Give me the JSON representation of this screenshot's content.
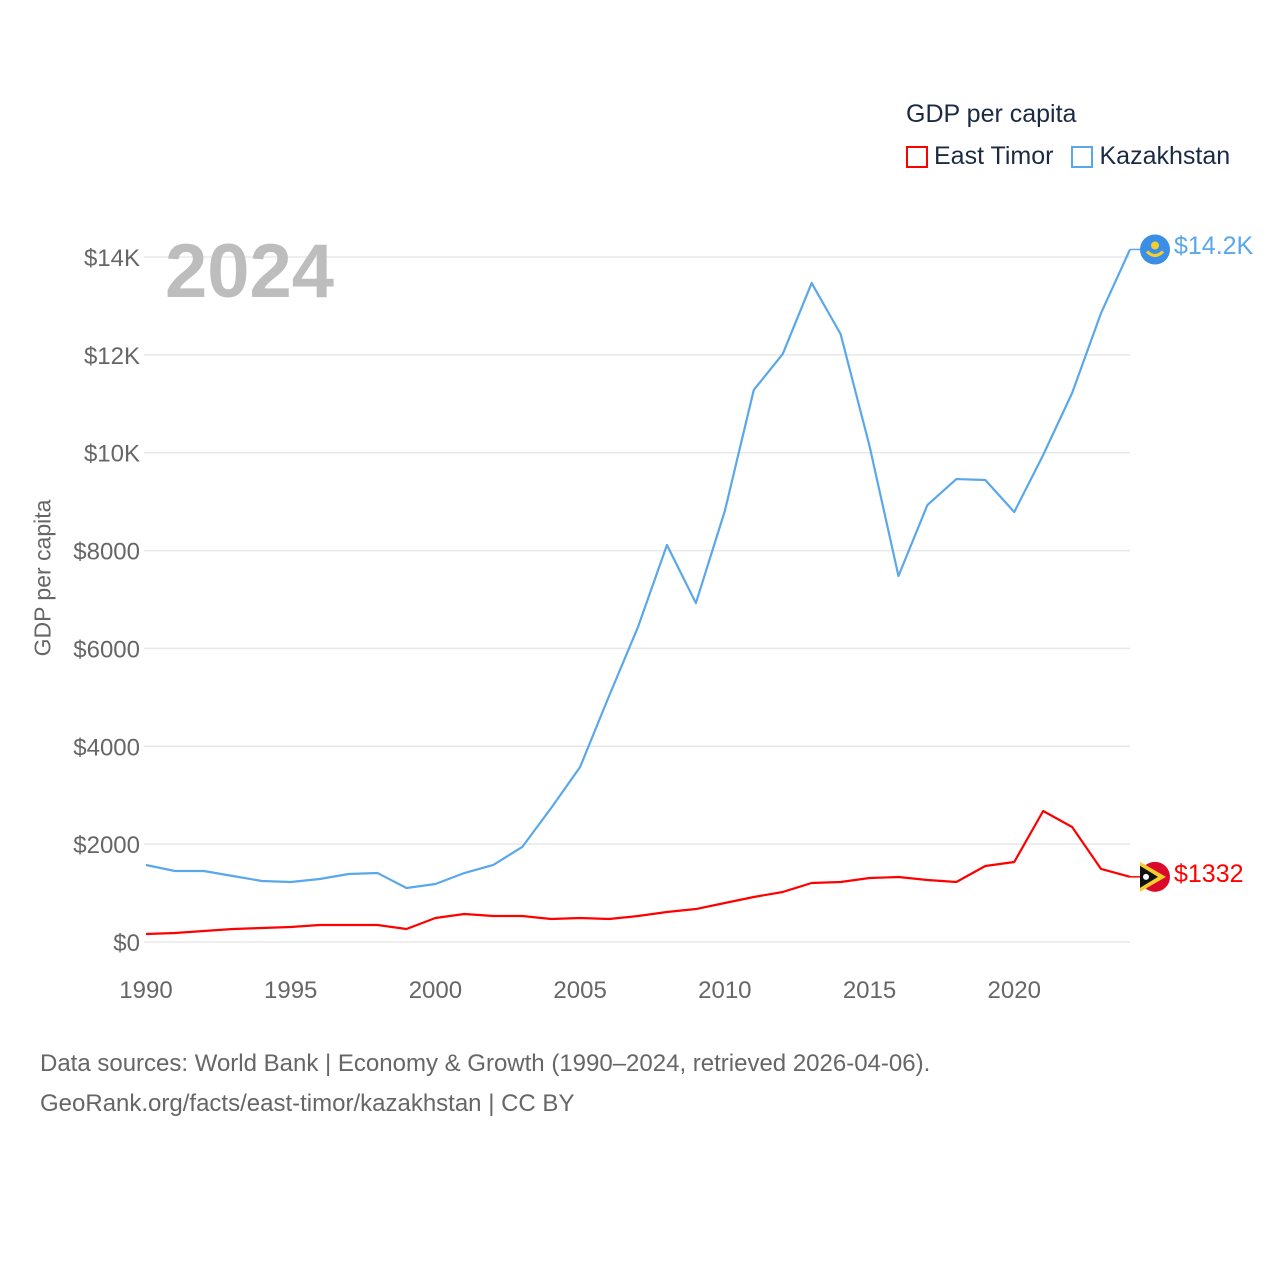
{
  "legend": {
    "title": "GDP per capita",
    "items": [
      {
        "label": "East Timor",
        "color": "#ff0000"
      },
      {
        "label": "Kazakhstan",
        "color": "#5aa7ea"
      }
    ]
  },
  "year_overlay": "2024",
  "footer": {
    "line1": "Data sources: World Bank | Economy & Growth (1990–2024, retrieved 2026-04-06).",
    "line2": "GeoRank.org/facts/east-timor/kazakhstan | CC BY"
  },
  "chart_data": {
    "type": "line",
    "title": "GDP per capita",
    "xlabel": "",
    "ylabel": "GDP per capita",
    "xlim": [
      1990,
      2024
    ],
    "ylim": [
      0,
      14000
    ],
    "grid": true,
    "legend_position": "top-right",
    "x_ticks": [
      1990,
      1995,
      2000,
      2005,
      2010,
      2015,
      2020
    ],
    "x_tick_labels": [
      "1990",
      "1995",
      "2000",
      "2005",
      "2010",
      "2015",
      "2020"
    ],
    "y_ticks": [
      0,
      2000,
      4000,
      6000,
      8000,
      10000,
      12000,
      14000
    ],
    "y_tick_labels": [
      "$0",
      "$2000",
      "$4000",
      "$6000",
      "$8000",
      "$10K",
      "$12K",
      "$14K"
    ],
    "x": [
      1990,
      1991,
      1992,
      1993,
      1994,
      1995,
      1996,
      1997,
      1998,
      1999,
      2000,
      2001,
      2002,
      2003,
      2004,
      2005,
      2006,
      2007,
      2008,
      2009,
      2010,
      2011,
      2012,
      2013,
      2014,
      2015,
      2016,
      2017,
      2018,
      2019,
      2020,
      2021,
      2022,
      2023,
      2024
    ],
    "series": [
      {
        "name": "East Timor",
        "color": "#ff0000",
        "end_label": "$1332",
        "values": [
          163,
          184,
          225,
          266,
          286,
          307,
          347,
          347,
          347,
          266,
          490,
          572,
          531,
          531,
          470,
          490,
          470,
          531,
          613,
          674,
          797,
          920,
          1022,
          1206,
          1226,
          1308,
          1328,
          1267,
          1226,
          1553,
          1635,
          2677,
          2350,
          1492,
          1332
        ]
      },
      {
        "name": "Kazakhstan",
        "color": "#5aa7ea",
        "end_label": "$14.2K",
        "values": [
          1574,
          1451,
          1451,
          1349,
          1247,
          1226,
          1288,
          1390,
          1410,
          1104,
          1185,
          1410,
          1574,
          1942,
          2739,
          3577,
          5028,
          6438,
          8114,
          6928,
          8809,
          11282,
          12017,
          13468,
          12426,
          10137,
          7480,
          8931,
          9462,
          9442,
          8788,
          9953,
          11220,
          12855,
          14154
        ]
      }
    ]
  }
}
